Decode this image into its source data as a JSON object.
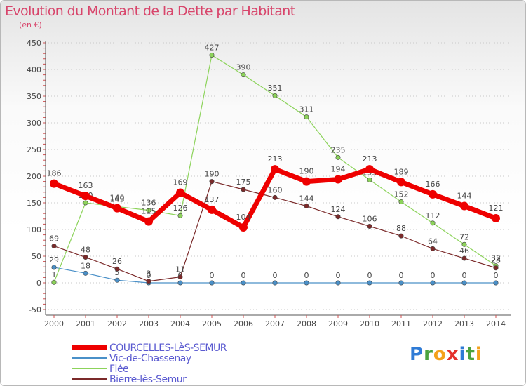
{
  "title": "Evolution du Montant de la Dette par Habitant",
  "unit_label": "(en €)",
  "logo_text": "Proxiti",
  "chart_data": {
    "type": "line",
    "title": "Evolution du Montant de la Dette par Habitant",
    "ylabel": "(en €)",
    "xlabel": "",
    "x": [
      2000,
      2001,
      2002,
      2003,
      2004,
      2005,
      2006,
      2007,
      2008,
      2009,
      2010,
      2011,
      2012,
      2013,
      2014
    ],
    "ylim": [
      -50,
      450
    ],
    "yticks": [
      -50,
      0,
      50,
      100,
      150,
      200,
      250,
      300,
      350,
      400,
      450
    ],
    "grid": "horizontal dotted",
    "legend_position": "bottom-left",
    "series": [
      {
        "name": "Vic-de-Chassenay",
        "color": "#4a90c8",
        "values": [
          29,
          18,
          5,
          0,
          0,
          0,
          0,
          0,
          0,
          0,
          0,
          0,
          0,
          0,
          0
        ],
        "labels": [
          "29",
          "18",
          "5",
          "0",
          "0",
          "0",
          "0",
          "0",
          "0",
          "0",
          "0",
          "0",
          "0",
          "0",
          "0"
        ]
      },
      {
        "name": "Flée",
        "color": "#8cd35a",
        "values": [
          1,
          150,
          143,
          136,
          126,
          427,
          390,
          351,
          311,
          235,
          193,
          152,
          112,
          72,
          32
        ],
        "labels": [
          "1",
          "150",
          "143",
          "136",
          "126",
          "427",
          "390",
          "351",
          "311",
          "235",
          "193",
          "152",
          "112",
          "72",
          "32"
        ]
      },
      {
        "name": "Bierre-lès-Semur",
        "color": "#7b2a2a",
        "values": [
          69,
          48,
          26,
          3,
          11,
          190,
          175,
          160,
          144,
          124,
          106,
          88,
          64,
          46,
          28
        ],
        "labels": [
          "69",
          "48",
          "26",
          "3",
          "11",
          "190",
          "175",
          "160",
          "144",
          "124",
          "106",
          "88",
          "64",
          "46",
          "28"
        ]
      },
      {
        "name": "COURCELLES-LèS-SEMUR",
        "color": "#ee0000",
        "values": [
          186,
          163,
          140,
          115,
          169,
          137,
          104,
          213,
          190,
          194,
          213,
          189,
          166,
          144,
          121
        ],
        "labels": [
          "186",
          "163",
          "140",
          "115",
          "169",
          "137",
          "104",
          "213",
          "190",
          "194",
          "213",
          "189",
          "166",
          "144",
          "121"
        ]
      }
    ],
    "legend_order": [
      "COURCELLES-LèS-SEMUR",
      "Vic-de-Chassenay",
      "Flée",
      "Bierre-lès-Semur"
    ]
  }
}
